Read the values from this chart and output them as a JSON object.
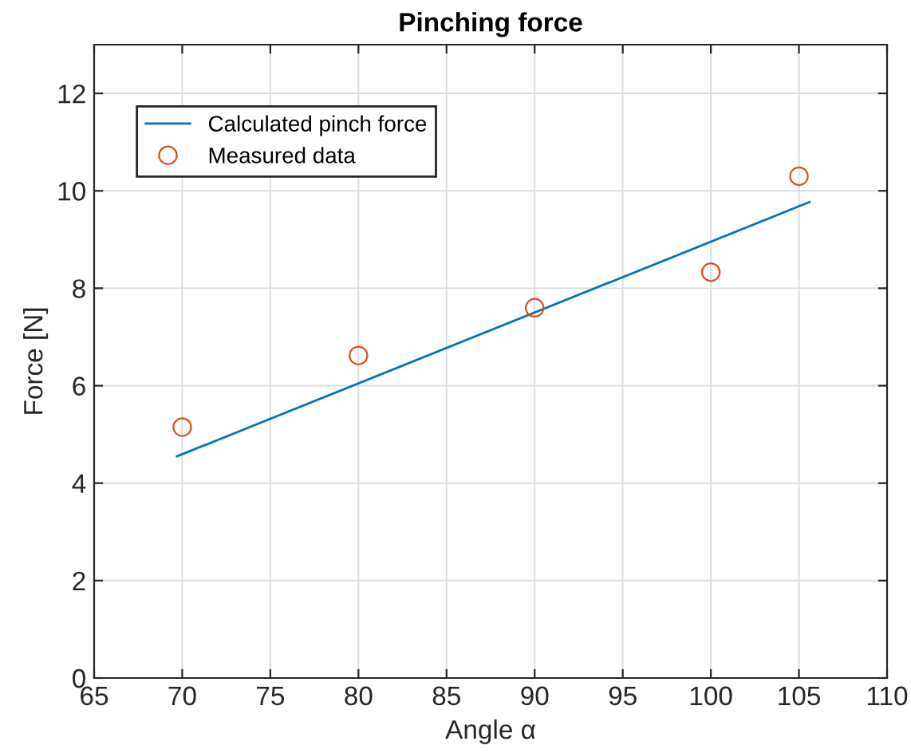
{
  "chart_data": {
    "type": "line",
    "title": "Pinching force",
    "xlabel": "Angle α",
    "ylabel": "Force [N]",
    "series": [
      {
        "name": "Calculated pinch force",
        "color": "#0072bd",
        "x": [
          69.7,
          105.6
        ],
        "values": [
          4.55,
          9.77
        ],
        "marker": "none",
        "line_style": "solid"
      },
      {
        "name": "Measured data",
        "type": "scatter",
        "color": "#d95319",
        "x": [
          70,
          80,
          90,
          100,
          105
        ],
        "values": [
          5.15,
          6.62,
          7.6,
          8.33,
          10.3
        ],
        "marker": "circle"
      }
    ],
    "xlim": [
      65,
      110
    ],
    "xticks": [
      65,
      70,
      75,
      80,
      85,
      90,
      95,
      100,
      105,
      110
    ],
    "ylim": [
      0,
      13
    ],
    "yticks": [
      0,
      2,
      4,
      6,
      8,
      10,
      12
    ],
    "grid": true,
    "legend": "top left"
  }
}
